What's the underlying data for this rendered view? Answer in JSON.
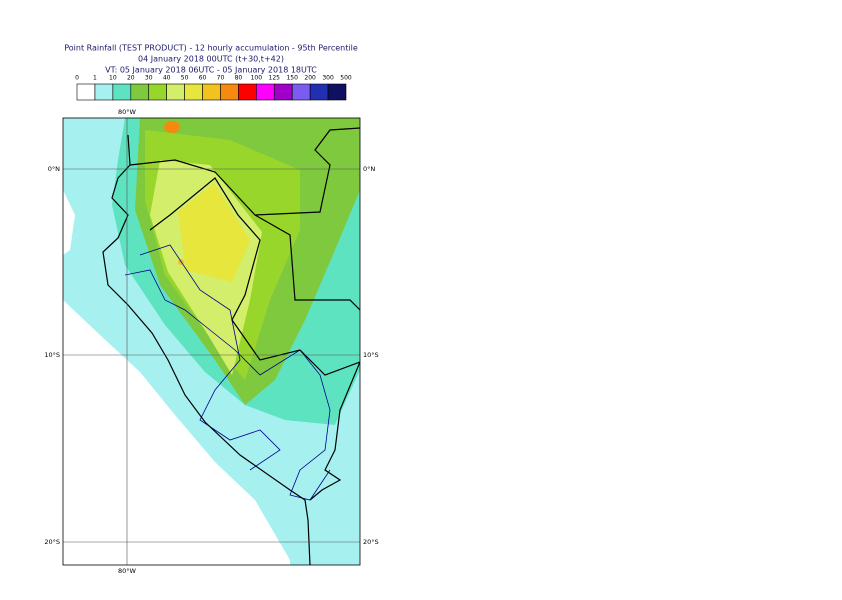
{
  "header": {
    "title_lines": [
      "Point Rainfall (TEST PRODUCT) - 12 hourly accumulation - 95th Percentile",
      "04 January 2018 00UTC (t+30,t+42)",
      "VT: 05 January 2018 06UTC - 05 January 2018 18UTC"
    ]
  },
  "legend": {
    "labels": [
      0,
      1,
      10,
      20,
      30,
      40,
      50,
      60,
      70,
      80,
      100,
      125,
      150,
      200,
      300,
      500
    ],
    "colors": [
      "#ffffff",
      "#a6f0f0",
      "#5ee3c0",
      "#7fc93f",
      "#98d62c",
      "#d2ee6a",
      "#e6e63c",
      "#f2c21d",
      "#f58a0f",
      "#ff0000",
      "#ff00ff",
      "#a000c8",
      "#7a5cf0",
      "#2030b0",
      "#101060"
    ]
  },
  "map": {
    "lat_labels": [
      "0°N",
      "10°S",
      "20°S"
    ],
    "lon_label": "80°W"
  }
}
